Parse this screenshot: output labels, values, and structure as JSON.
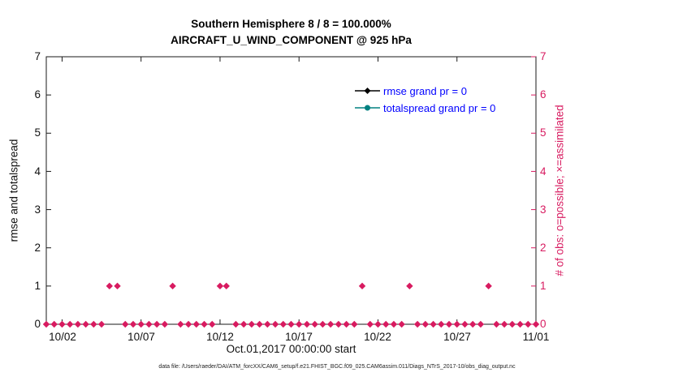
{
  "figure": {
    "caption": "data file: /Users/raeder/DAI/ATM_forcXX/CAM6_setup/f.e21.FHIST_BGC.f09_025.CAM6assim.011/Diags_NTrS_2017-10/obs_diag_output.nc"
  },
  "chart_data": {
    "type": "scatter",
    "title": "Southern Hemisphere 8 / 8 = 100.000%",
    "subtitle": "AIRCRAFT_U_WIND_COMPONENT @ 925 hPa",
    "xlabel": "Oct.01,2017 00:00:00 start",
    "ylabel_left": "rmse and totalspread",
    "ylabel_right": "# of obs: o=possible; ×=assimilated",
    "xlim_days": [
      0,
      31
    ],
    "ylim": [
      0,
      7
    ],
    "grid": false,
    "legend_position": "top-right-inside",
    "yticks": [
      0,
      1,
      2,
      3,
      4,
      5,
      6,
      7
    ],
    "xticks": [
      {
        "day": 1,
        "label": "10/02"
      },
      {
        "day": 6,
        "label": "10/07"
      },
      {
        "day": 11,
        "label": "10/12"
      },
      {
        "day": 16,
        "label": "10/17"
      },
      {
        "day": 21,
        "label": "10/22"
      },
      {
        "day": 26,
        "label": "10/27"
      },
      {
        "day": 31,
        "label": "11/01"
      }
    ],
    "colors": {
      "obs": "#d81b60",
      "rmse": "#000000",
      "totalspread": "#008080",
      "legend_text": "#0000ff",
      "axis": "#1a1a1a"
    },
    "legend": [
      {
        "label": "rmse grand pr = 0",
        "series": "rmse",
        "marker": "diamond"
      },
      {
        "label": "totalspread grand pr = 0",
        "series": "totalspread",
        "marker": "circle"
      }
    ],
    "series": [
      {
        "name": "obs-count-zero",
        "marker": "diamond",
        "color_key": "obs",
        "y": 0,
        "x_days": [
          0,
          0.5,
          1,
          1.5,
          2,
          2.5,
          3,
          3.5,
          5,
          5.5,
          6,
          6.5,
          7,
          7.5,
          8.5,
          9,
          9.5,
          10,
          10.5,
          12,
          12.5,
          13,
          13.5,
          14,
          14.5,
          15,
          15.5,
          16,
          16.5,
          17,
          17.5,
          18,
          18.5,
          19,
          19.5,
          20.5,
          21,
          21.5,
          22,
          22.5,
          23.5,
          24,
          24.5,
          25,
          25.5,
          26,
          26.5,
          27,
          27.5,
          28.5,
          29,
          29.5,
          30,
          30.5,
          31
        ]
      },
      {
        "name": "obs-count-one",
        "marker": "diamond",
        "color_key": "obs",
        "y": 1,
        "x_days": [
          4,
          4.5,
          8,
          11,
          11.4,
          20,
          23,
          28
        ]
      }
    ]
  }
}
